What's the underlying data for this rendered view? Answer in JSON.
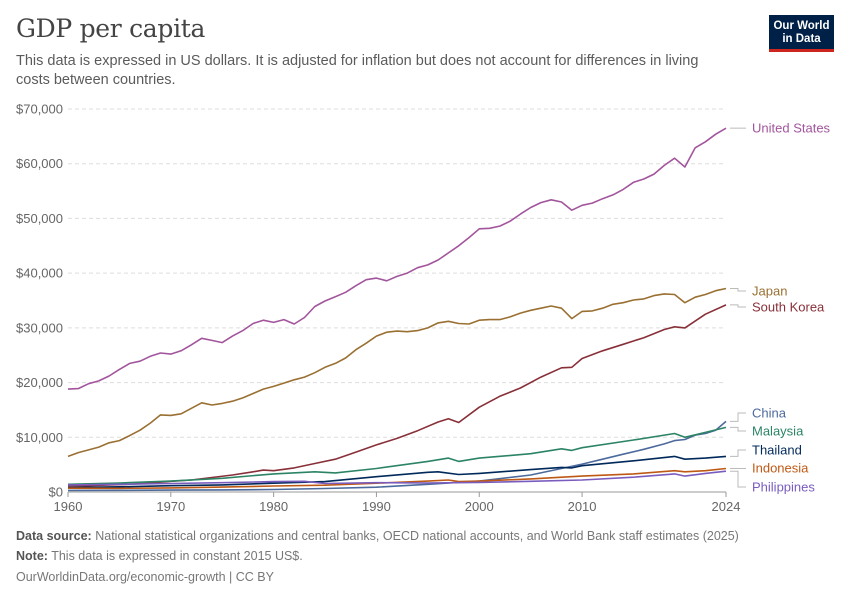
{
  "header": {
    "title": "GDP per capita",
    "subtitle": "This data is expressed in US dollars. It is adjusted for inflation but does not account for differences in living costs between countries.",
    "logo_line1": "Our World",
    "logo_line2": "in Data"
  },
  "footer": {
    "source_label": "Data source:",
    "source_text": "National statistical organizations and central banks, OECD national accounts, and World Bank staff estimates (2025)",
    "note_label": "Note:",
    "note_text": "This data is expressed in constant 2015 US$.",
    "credit": "OurWorldinData.org/economic-growth | CC BY"
  },
  "chart_data": {
    "type": "line",
    "ylim": [
      0,
      70000
    ],
    "xlim": [
      1960,
      2024
    ],
    "y_ticks": [
      {
        "value": 0,
        "label": "$0"
      },
      {
        "value": 10000,
        "label": "$10,000"
      },
      {
        "value": 20000,
        "label": "$20,000"
      },
      {
        "value": 30000,
        "label": "$30,000"
      },
      {
        "value": 40000,
        "label": "$40,000"
      },
      {
        "value": 50000,
        "label": "$50,000"
      },
      {
        "value": 60000,
        "label": "$60,000"
      },
      {
        "value": 70000,
        "label": "$70,000"
      }
    ],
    "x_ticks": [
      {
        "value": 1960,
        "label": "1960"
      },
      {
        "value": 1970,
        "label": "1970"
      },
      {
        "value": 1980,
        "label": "1980"
      },
      {
        "value": 1990,
        "label": "1990"
      },
      {
        "value": 2000,
        "label": "2000"
      },
      {
        "value": 2010,
        "label": "2010"
      },
      {
        "value": 2024,
        "label": "2024"
      }
    ],
    "grid": true,
    "legend": "right",
    "series": [
      {
        "name": "United States",
        "color": "#a2559c",
        "points": [
          [
            1960,
            18800
          ],
          [
            1961,
            18900
          ],
          [
            1962,
            19800
          ],
          [
            1963,
            20300
          ],
          [
            1964,
            21200
          ],
          [
            1965,
            22400
          ],
          [
            1966,
            23500
          ],
          [
            1967,
            23900
          ],
          [
            1968,
            24800
          ],
          [
            1969,
            25400
          ],
          [
            1970,
            25200
          ],
          [
            1971,
            25800
          ],
          [
            1972,
            26900
          ],
          [
            1973,
            28100
          ],
          [
            1974,
            27700
          ],
          [
            1975,
            27300
          ],
          [
            1976,
            28500
          ],
          [
            1977,
            29500
          ],
          [
            1978,
            30800
          ],
          [
            1979,
            31400
          ],
          [
            1980,
            31000
          ],
          [
            1981,
            31500
          ],
          [
            1982,
            30700
          ],
          [
            1983,
            31900
          ],
          [
            1984,
            33900
          ],
          [
            1985,
            34900
          ],
          [
            1986,
            35700
          ],
          [
            1987,
            36500
          ],
          [
            1988,
            37700
          ],
          [
            1989,
            38800
          ],
          [
            1990,
            39100
          ],
          [
            1991,
            38600
          ],
          [
            1992,
            39400
          ],
          [
            1993,
            40000
          ],
          [
            1994,
            41000
          ],
          [
            1995,
            41500
          ],
          [
            1996,
            42400
          ],
          [
            1997,
            43700
          ],
          [
            1998,
            45000
          ],
          [
            1999,
            46500
          ],
          [
            2000,
            48100
          ],
          [
            2001,
            48200
          ],
          [
            2002,
            48600
          ],
          [
            2003,
            49500
          ],
          [
            2004,
            50800
          ],
          [
            2005,
            52000
          ],
          [
            2006,
            52900
          ],
          [
            2007,
            53400
          ],
          [
            2008,
            53000
          ],
          [
            2009,
            51500
          ],
          [
            2010,
            52400
          ],
          [
            2011,
            52800
          ],
          [
            2012,
            53600
          ],
          [
            2013,
            54300
          ],
          [
            2014,
            55300
          ],
          [
            2015,
            56600
          ],
          [
            2016,
            57200
          ],
          [
            2017,
            58100
          ],
          [
            2018,
            59700
          ],
          [
            2019,
            61000
          ],
          [
            2020,
            59400
          ],
          [
            2021,
            62900
          ],
          [
            2022,
            64000
          ],
          [
            2023,
            65400
          ],
          [
            2024,
            66500
          ]
        ]
      },
      {
        "name": "Japan",
        "color": "#9a7032",
        "points": [
          [
            1960,
            6500
          ],
          [
            1961,
            7200
          ],
          [
            1962,
            7700
          ],
          [
            1963,
            8200
          ],
          [
            1964,
            9000
          ],
          [
            1965,
            9400
          ],
          [
            1966,
            10300
          ],
          [
            1967,
            11300
          ],
          [
            1968,
            12600
          ],
          [
            1969,
            14100
          ],
          [
            1970,
            14000
          ],
          [
            1971,
            14300
          ],
          [
            1972,
            15300
          ],
          [
            1973,
            16300
          ],
          [
            1974,
            15900
          ],
          [
            1975,
            16200
          ],
          [
            1976,
            16600
          ],
          [
            1977,
            17200
          ],
          [
            1978,
            18000
          ],
          [
            1979,
            18800
          ],
          [
            1980,
            19300
          ],
          [
            1981,
            19900
          ],
          [
            1982,
            20500
          ],
          [
            1983,
            21000
          ],
          [
            1984,
            21800
          ],
          [
            1985,
            22800
          ],
          [
            1986,
            23500
          ],
          [
            1987,
            24500
          ],
          [
            1988,
            26000
          ],
          [
            1989,
            27200
          ],
          [
            1990,
            28500
          ],
          [
            1991,
            29200
          ],
          [
            1992,
            29400
          ],
          [
            1993,
            29300
          ],
          [
            1994,
            29500
          ],
          [
            1995,
            30000
          ],
          [
            1996,
            30900
          ],
          [
            1997,
            31200
          ],
          [
            1998,
            30800
          ],
          [
            1999,
            30700
          ],
          [
            2000,
            31400
          ],
          [
            2001,
            31500
          ],
          [
            2002,
            31500
          ],
          [
            2003,
            32000
          ],
          [
            2004,
            32700
          ],
          [
            2005,
            33200
          ],
          [
            2006,
            33600
          ],
          [
            2007,
            34000
          ],
          [
            2008,
            33600
          ],
          [
            2009,
            31700
          ],
          [
            2010,
            33000
          ],
          [
            2011,
            33100
          ],
          [
            2012,
            33600
          ],
          [
            2013,
            34300
          ],
          [
            2014,
            34600
          ],
          [
            2015,
            35100
          ],
          [
            2016,
            35300
          ],
          [
            2017,
            35900
          ],
          [
            2018,
            36200
          ],
          [
            2019,
            36100
          ],
          [
            2020,
            34600
          ],
          [
            2021,
            35600
          ],
          [
            2022,
            36100
          ],
          [
            2023,
            36800
          ],
          [
            2024,
            37200
          ]
        ]
      },
      {
        "name": "South Korea",
        "color": "#883039",
        "points": [
          [
            1960,
            1100
          ],
          [
            1962,
            1150
          ],
          [
            1964,
            1280
          ],
          [
            1966,
            1430
          ],
          [
            1968,
            1650
          ],
          [
            1970,
            1950
          ],
          [
            1972,
            2200
          ],
          [
            1974,
            2650
          ],
          [
            1976,
            3100
          ],
          [
            1978,
            3700
          ],
          [
            1979,
            4000
          ],
          [
            1980,
            3900
          ],
          [
            1982,
            4400
          ],
          [
            1984,
            5200
          ],
          [
            1986,
            6000
          ],
          [
            1988,
            7300
          ],
          [
            1990,
            8600
          ],
          [
            1992,
            9800
          ],
          [
            1994,
            11200
          ],
          [
            1996,
            12800
          ],
          [
            1997,
            13400
          ],
          [
            1998,
            12700
          ],
          [
            2000,
            15500
          ],
          [
            2002,
            17500
          ],
          [
            2004,
            19000
          ],
          [
            2006,
            21000
          ],
          [
            2008,
            22700
          ],
          [
            2009,
            22800
          ],
          [
            2010,
            24400
          ],
          [
            2012,
            25800
          ],
          [
            2014,
            27000
          ],
          [
            2016,
            28200
          ],
          [
            2018,
            29700
          ],
          [
            2019,
            30200
          ],
          [
            2020,
            30000
          ],
          [
            2022,
            32500
          ],
          [
            2024,
            34200
          ]
        ]
      },
      {
        "name": "China",
        "color": "#4c6a9c",
        "points": [
          [
            1960,
            300
          ],
          [
            1965,
            310
          ],
          [
            1970,
            340
          ],
          [
            1975,
            380
          ],
          [
            1980,
            450
          ],
          [
            1985,
            640
          ],
          [
            1990,
            870
          ],
          [
            1995,
            1400
          ],
          [
            2000,
            2000
          ],
          [
            2005,
            3100
          ],
          [
            2010,
            5100
          ],
          [
            2012,
            6000
          ],
          [
            2014,
            6900
          ],
          [
            2016,
            7800
          ],
          [
            2018,
            8800
          ],
          [
            2019,
            9400
          ],
          [
            2020,
            9600
          ],
          [
            2021,
            10400
          ],
          [
            2022,
            10700
          ],
          [
            2023,
            11300
          ],
          [
            2024,
            12900
          ]
        ]
      },
      {
        "name": "Malaysia",
        "color": "#2c8465",
        "points": [
          [
            1960,
            1400
          ],
          [
            1965,
            1650
          ],
          [
            1970,
            2000
          ],
          [
            1975,
            2500
          ],
          [
            1980,
            3300
          ],
          [
            1984,
            3700
          ],
          [
            1986,
            3500
          ],
          [
            1990,
            4300
          ],
          [
            1995,
            5600
          ],
          [
            1997,
            6200
          ],
          [
            1998,
            5600
          ],
          [
            2000,
            6200
          ],
          [
            2005,
            7000
          ],
          [
            2008,
            7900
          ],
          [
            2009,
            7600
          ],
          [
            2010,
            8100
          ],
          [
            2015,
            9500
          ],
          [
            2019,
            10700
          ],
          [
            2020,
            10000
          ],
          [
            2022,
            10900
          ],
          [
            2024,
            11800
          ]
        ]
      },
      {
        "name": "Thailand",
        "color": "#00295b",
        "points": [
          [
            1960,
            800
          ],
          [
            1965,
            950
          ],
          [
            1970,
            1150
          ],
          [
            1975,
            1300
          ],
          [
            1980,
            1600
          ],
          [
            1985,
            1900
          ],
          [
            1990,
            2800
          ],
          [
            1995,
            3600
          ],
          [
            1996,
            3700
          ],
          [
            1998,
            3200
          ],
          [
            2000,
            3400
          ],
          [
            2005,
            4100
          ],
          [
            2008,
            4500
          ],
          [
            2009,
            4400
          ],
          [
            2010,
            4800
          ],
          [
            2015,
            5700
          ],
          [
            2019,
            6500
          ],
          [
            2020,
            6000
          ],
          [
            2022,
            6200
          ],
          [
            2024,
            6500
          ]
        ]
      },
      {
        "name": "Indonesia",
        "color": "#be5915",
        "points": [
          [
            1960,
            700
          ],
          [
            1965,
            680
          ],
          [
            1970,
            750
          ],
          [
            1975,
            900
          ],
          [
            1980,
            1100
          ],
          [
            1985,
            1250
          ],
          [
            1990,
            1600
          ],
          [
            1995,
            2000
          ],
          [
            1997,
            2200
          ],
          [
            1998,
            1900
          ],
          [
            2000,
            2000
          ],
          [
            2005,
            2400
          ],
          [
            2010,
            2900
          ],
          [
            2015,
            3300
          ],
          [
            2019,
            3900
          ],
          [
            2020,
            3700
          ],
          [
            2022,
            3900
          ],
          [
            2024,
            4300
          ]
        ]
      },
      {
        "name": "Philippines",
        "color": "#7a5cbe",
        "points": [
          [
            1960,
            1300
          ],
          [
            1965,
            1400
          ],
          [
            1970,
            1550
          ],
          [
            1975,
            1700
          ],
          [
            1980,
            1900
          ],
          [
            1983,
            1950
          ],
          [
            1985,
            1550
          ],
          [
            1990,
            1700
          ],
          [
            1995,
            1650
          ],
          [
            2000,
            1750
          ],
          [
            2005,
            1950
          ],
          [
            2010,
            2200
          ],
          [
            2015,
            2700
          ],
          [
            2019,
            3300
          ],
          [
            2020,
            2900
          ],
          [
            2022,
            3400
          ],
          [
            2024,
            3800
          ]
        ]
      }
    ]
  }
}
